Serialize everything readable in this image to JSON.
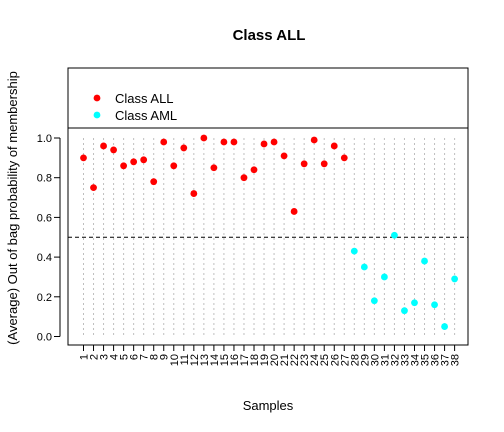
{
  "chart_data": {
    "type": "scatter",
    "title": "Class ALL",
    "xlabel": "Samples",
    "ylabel": "(Average) Out of bag probability of membership",
    "x": [
      1,
      2,
      3,
      4,
      5,
      6,
      7,
      8,
      9,
      10,
      11,
      12,
      13,
      14,
      15,
      16,
      17,
      18,
      19,
      20,
      21,
      22,
      23,
      24,
      25,
      26,
      27,
      28,
      29,
      30,
      31,
      32,
      33,
      34,
      35,
      36,
      37,
      38
    ],
    "x_tick_labels": [
      "1",
      "2",
      "3",
      "4",
      "5",
      "6",
      "7",
      "8",
      "9",
      "10",
      "11",
      "12",
      "13",
      "14",
      "15",
      "16",
      "17",
      "18",
      "19",
      "20",
      "21",
      "22",
      "23",
      "24",
      "25",
      "26",
      "27",
      "28",
      "29",
      "30",
      "31",
      "32",
      "33",
      "34",
      "35",
      "36",
      "37",
      "38"
    ],
    "y_ticks": [
      "0.0",
      "0.2",
      "0.4",
      "0.6",
      "0.8",
      "1.0"
    ],
    "ylim": [
      0,
      1
    ],
    "series": [
      {
        "name": "Class ALL",
        "color": "#ff0000",
        "x": [
          1,
          2,
          3,
          4,
          5,
          6,
          7,
          8,
          9,
          10,
          11,
          12,
          13,
          14,
          15,
          16,
          17,
          18,
          19,
          20,
          21,
          22,
          23,
          24,
          25,
          26,
          27
        ],
        "values": [
          0.9,
          0.75,
          0.96,
          0.94,
          0.86,
          0.88,
          0.89,
          0.78,
          0.98,
          0.86,
          0.95,
          0.72,
          1.0,
          0.85,
          0.98,
          0.98,
          0.8,
          0.84,
          0.97,
          0.98,
          0.91,
          0.63,
          0.87,
          0.99,
          0.87,
          0.96,
          0.9
        ]
      },
      {
        "name": "Class AML",
        "color": "#00ffff",
        "x": [
          28,
          29,
          30,
          31,
          32,
          33,
          34,
          35,
          36,
          37,
          38
        ],
        "values": [
          0.43,
          0.35,
          0.18,
          0.3,
          0.51,
          0.13,
          0.17,
          0.38,
          0.16,
          0.05,
          0.29
        ]
      }
    ],
    "reference_line": {
      "y": 0.5,
      "style": "dashed"
    },
    "vertical_grid": {
      "style": "dotted",
      "color": "#bebebe"
    },
    "legend_position": "top-left, in separate box above plot"
  }
}
